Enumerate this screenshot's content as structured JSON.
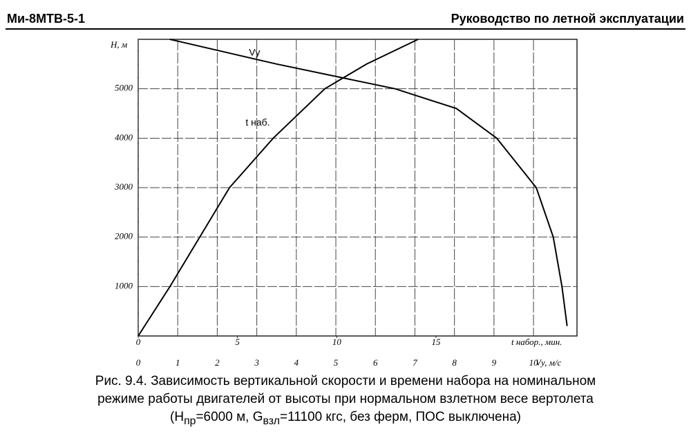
{
  "header": {
    "left": "Ми-8МТВ-5-1",
    "right": "Руководство по летной эксплуатации"
  },
  "chart_data": {
    "type": "line",
    "ylabel": "H, м",
    "xlabel": "t набор., мин.",
    "x2label": "Vу, м/с",
    "ylim": [
      0,
      6000
    ],
    "yticks": [
      1000,
      2000,
      3000,
      4000,
      5000
    ],
    "xlim": [
      0,
      22.1
    ],
    "xticks": [
      0,
      5,
      10,
      15
    ],
    "x2lim": [
      0,
      11.1
    ],
    "x2ticks": [
      0,
      1,
      2,
      3,
      4,
      5,
      6,
      7,
      8,
      9,
      10
    ],
    "grid": true,
    "series": [
      {
        "name": "t наб.",
        "color": "#000000",
        "x": [
          0,
          1.6,
          3.1,
          4.6,
          6.8,
          9.4,
          11.5,
          14.1
        ],
        "values": [
          0,
          1000,
          2000,
          3000,
          4000,
          5000,
          5500,
          6000
        ]
      },
      {
        "name": "Vу",
        "color": "#000000",
        "axis": "x2",
        "x": [
          0.8,
          3.5,
          6.5,
          8.05,
          9.07,
          10.07,
          10.5,
          10.72,
          10.85
        ],
        "values": [
          6000,
          5500,
          5000,
          4600,
          4000,
          3000,
          2000,
          1000,
          200
        ]
      }
    ]
  },
  "caption": {
    "lines": [
      "Рис. 9.4. Зависимость вертикальной скорости и времени набора на номинальном",
      "режиме работы двигателей от высоты при нормальном взлетном весе вертолета"
    ],
    "line3": [
      "(H",
      "пр",
      "=6000 м, G",
      "взл",
      "=11100 кгс, без ферм, ПОС выключена)"
    ]
  }
}
